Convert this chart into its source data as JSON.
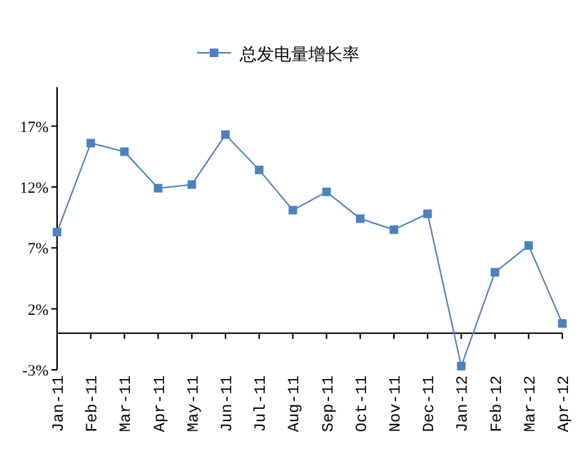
{
  "chart_data": {
    "type": "line",
    "categories": [
      "Jan-11",
      "Feb-11",
      "Mar-11",
      "Apr-11",
      "May-11",
      "Jun-11",
      "Jul-11",
      "Aug-11",
      "Sep-11",
      "Oct-11",
      "Nov-11",
      "Dec-11",
      "Jan-12",
      "Feb-12",
      "Mar-12",
      "Apr-12"
    ],
    "series": [
      {
        "name": "总发电量增长率",
        "color": "#4f81bd",
        "values": [
          8.3,
          15.6,
          14.9,
          11.9,
          12.2,
          16.3,
          13.4,
          10.1,
          11.6,
          9.4,
          8.5,
          9.8,
          -2.7,
          5.0,
          7.2,
          0.8
        ]
      }
    ],
    "ylim": [
      -3,
      20.2
    ],
    "yticks": [
      {
        "value": -3,
        "label": "-3%"
      },
      {
        "value": 2,
        "label": "2%"
      },
      {
        "value": 7,
        "label": "7%"
      },
      {
        "value": 12,
        "label": "12%"
      },
      {
        "value": 17,
        "label": "17%"
      }
    ],
    "marker": "square",
    "line_style": "solid",
    "grid": false,
    "legend": "top"
  }
}
